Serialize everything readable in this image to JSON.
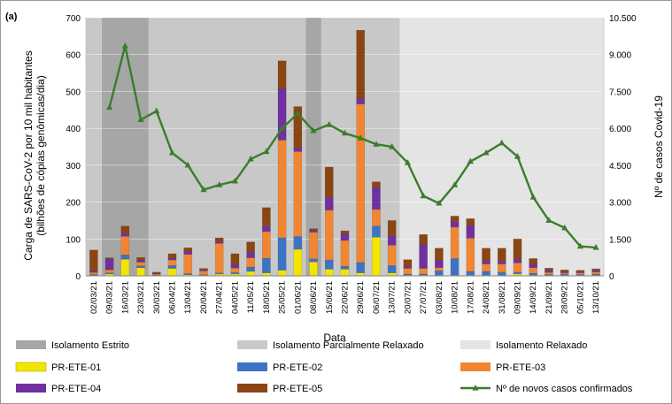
{
  "panel_label": "(a)",
  "chart_data": {
    "type": "bar",
    "stacked": true,
    "title": "",
    "categories": [
      "02/03/21",
      "09/03/21",
      "16/03/21",
      "23/03/21",
      "30/03/21",
      "06/04/21",
      "13/04/21",
      "20/04/21",
      "27/04/21",
      "04/05/21",
      "11/05/21",
      "18/05/21",
      "25/05/21",
      "01/06/21",
      "08/06/21",
      "15/06/21",
      "22/06/21",
      "29/06/21",
      "06/07/21",
      "13/07/21",
      "20/07/21",
      "27/07/21",
      "03/08/21",
      "10/08/21",
      "17/08/21",
      "24/08/21",
      "31/08/21",
      "09/09/21",
      "14/09/21",
      "21/09/21",
      "28/09/21",
      "05/10/21",
      "13/10/21"
    ],
    "xlabel": "Data",
    "ylabel": "Carga de SARS-CoV-2 por 10 mil habitantes",
    "ylabel2": "(bilhões de cópias genômicas/dia)",
    "y2label": "Nº de casos Covid-19",
    "ylim": [
      0,
      700
    ],
    "y2lim": [
      0,
      10500
    ],
    "yticks": [
      "0",
      "100",
      "200",
      "300",
      "400",
      "500",
      "600",
      "700"
    ],
    "y2ticks": [
      "0",
      "1.500",
      "3.000",
      "4.500",
      "6.000",
      "7.500",
      "9.000",
      "10.500"
    ],
    "periods": [
      {
        "name": "Isolamento Estrito",
        "start": 1,
        "end": 4,
        "color": "#a6a6a6"
      },
      {
        "name": "Isolamento Estrito",
        "start": 14,
        "end": 15,
        "color": "#a6a6a6"
      },
      {
        "name": "Isolamento Parcialmente Relaxado",
        "start": 0,
        "end": 1,
        "color": "#c8c8c8"
      },
      {
        "name": "Isolamento Parcialmente Relaxado",
        "start": 4,
        "end": 14,
        "color": "#c8c8c8"
      },
      {
        "name": "Isolamento Parcialmente Relaxado",
        "start": 15,
        "end": 20,
        "color": "#c8c8c8"
      },
      {
        "name": "Isolamento Relaxado",
        "start": 20,
        "end": 33,
        "color": "#e4e4e4"
      }
    ],
    "series": [
      {
        "name": "PR-ETE-01",
        "color": "#f2e600",
        "values": [
          2,
          5,
          45,
          22,
          2,
          20,
          3,
          2,
          5,
          5,
          12,
          8,
          15,
          72,
          38,
          18,
          18,
          8,
          105,
          8,
          2,
          2,
          2,
          2,
          2,
          2,
          2,
          5,
          2,
          2,
          2,
          2,
          2
        ]
      },
      {
        "name": "PR-ETE-02",
        "color": "#3d73c4",
        "values": [
          2,
          3,
          12,
          5,
          1,
          8,
          3,
          1,
          3,
          4,
          12,
          40,
          88,
          35,
          8,
          25,
          8,
          28,
          30,
          20,
          3,
          3,
          12,
          45,
          10,
          10,
          8,
          5,
          5,
          2,
          3,
          2,
          3
        ]
      },
      {
        "name": "PR-ETE-03",
        "color": "#f28532",
        "values": [
          5,
          8,
          50,
          10,
          2,
          15,
          52,
          10,
          80,
          12,
          25,
          72,
          265,
          230,
          72,
          135,
          70,
          430,
          45,
          55,
          15,
          15,
          8,
          85,
          90,
          20,
          22,
          25,
          15,
          5,
          3,
          4,
          5
        ]
      },
      {
        "name": "PR-ETE-04",
        "color": "#7030a0",
        "values": [
          3,
          30,
          8,
          5,
          1,
          5,
          8,
          3,
          5,
          10,
          15,
          15,
          140,
          10,
          5,
          35,
          18,
          15,
          60,
          25,
          5,
          65,
          20,
          15,
          35,
          8,
          8,
          10,
          10,
          5,
          3,
          3,
          4
        ]
      },
      {
        "name": "PR-ETE-05",
        "color": "#8b4513",
        "values": [
          58,
          3,
          20,
          8,
          4,
          12,
          10,
          4,
          10,
          29,
          28,
          50,
          75,
          112,
          5,
          82,
          8,
          185,
          15,
          42,
          19,
          27,
          33,
          15,
          18,
          35,
          35,
          55,
          15,
          7,
          5,
          4,
          5
        ]
      }
    ],
    "line": {
      "name": "Nº de novos casos confirmados",
      "color": "#3a7d2c",
      "values": [
        null,
        6850,
        9350,
        6350,
        6700,
        5000,
        4500,
        3500,
        3700,
        3850,
        4750,
        5050,
        6000,
        6600,
        5900,
        6150,
        5800,
        5600,
        5350,
        5250,
        4600,
        3250,
        2950,
        3700,
        4650,
        5000,
        5400,
        4850,
        3200,
        2250,
        1950,
        1200,
        1150
      ]
    }
  },
  "legend": [
    {
      "label": "Isolamento Estrito",
      "kind": "box",
      "color": "#a6a6a6"
    },
    {
      "label": "Isolamento Parcialmente Relaxado",
      "kind": "box",
      "color": "#c8c8c8"
    },
    {
      "label": "Isolamento Relaxado",
      "kind": "box",
      "color": "#e4e4e4"
    },
    {
      "label": "PR-ETE-01",
      "kind": "box",
      "color": "#f2e600"
    },
    {
      "label": "PR-ETE-02",
      "kind": "box",
      "color": "#3d73c4"
    },
    {
      "label": "PR-ETE-03",
      "kind": "box",
      "color": "#f28532"
    },
    {
      "label": "PR-ETE-04",
      "kind": "box",
      "color": "#7030a0"
    },
    {
      "label": "PR-ETE-05",
      "kind": "box",
      "color": "#8b4513"
    },
    {
      "label": "Nº de novos casos confirmados",
      "kind": "line",
      "color": "#3a7d2c"
    }
  ]
}
